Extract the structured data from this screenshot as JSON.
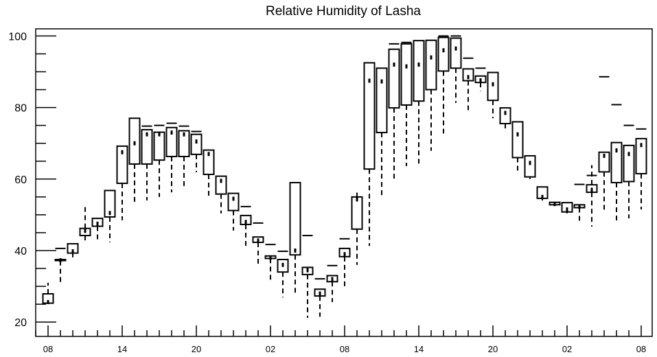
{
  "chart_data": {
    "type": "box",
    "title": "Relative Humidity of Lasha",
    "x": [
      8,
      9,
      10,
      11,
      12,
      13,
      14,
      15,
      16,
      17,
      18,
      19,
      20,
      21,
      22,
      23,
      0,
      1,
      2,
      3,
      4,
      5,
      6,
      7,
      8,
      9,
      10,
      11,
      12,
      13,
      14,
      15,
      16,
      17,
      18,
      19,
      20,
      21,
      22,
      23,
      0,
      1,
      2,
      3,
      4,
      5,
      6,
      7,
      8
    ],
    "x_tick_labels": [
      "08",
      "14",
      "20",
      "02",
      "08",
      "14",
      "20",
      "02",
      "08"
    ],
    "y_ticks": [
      20,
      40,
      60,
      80,
      100
    ],
    "ylim": [
      16,
      102
    ],
    "grid": false,
    "colors": {
      "stroke": "#000000",
      "background": "#ffffff"
    },
    "whisker_low": [
      25.3,
      31.2,
      38.1,
      42.1,
      42.9,
      42.3,
      48.5,
      52.7,
      54.0,
      55.0,
      56.3,
      57.7,
      61.9,
      55.0,
      50.4,
      45.6,
      40.6,
      36.3,
      31.3,
      26.9,
      27.5,
      21.2,
      21.5,
      25.6,
      29.4,
      36.0,
      41.3,
      55.2,
      59.4,
      63.6,
      64.0,
      67.9,
      72.5,
      81.3,
      79.0,
      84.6,
      77.0,
      73.6,
      62.0,
      60.0,
      54.0,
      52.5,
      50.4,
      48.3,
      46.7,
      51.2,
      47.5,
      49.0,
      51.5
    ],
    "q1": [
      25.3,
      37.2,
      39.3,
      44.2,
      46.8,
      49.4,
      58.8,
      64.2,
      64.2,
      65.3,
      66.3,
      66.3,
      66.9,
      61.3,
      55.8,
      51.2,
      47.3,
      42.3,
      37.8,
      34.0,
      38.8,
      33.3,
      27.3,
      31.3,
      38.3,
      46.0,
      62.8,
      73.0,
      79.9,
      80.7,
      81.8,
      85.0,
      90.2,
      91.0,
      87.5,
      87.0,
      82.0,
      75.5,
      66.0,
      60.6,
      54.6,
      52.8,
      50.8,
      52.0,
      56.3,
      62.0,
      59.0,
      59.3,
      61.5
    ],
    "median": [
      25.6,
      37.3,
      39.8,
      45.5,
      47.5,
      50.5,
      67.5,
      70.0,
      72.5,
      72.5,
      73.0,
      72.5,
      70.5,
      67.0,
      59.5,
      54.5,
      48.0,
      42.8,
      38.0,
      36.0,
      40.0,
      34.5,
      28.0,
      32.0,
      39.0,
      54.3,
      87.5,
      87.3,
      92.0,
      91.5,
      92.0,
      94.0,
      96.0,
      96.5,
      88.5,
      87.6,
      86.5,
      78.5,
      72.5,
      64.5,
      55.0,
      53.0,
      51.5,
      52.3,
      57.0,
      66.5,
      68.0,
      67.0,
      69.5
    ],
    "q3": [
      27.9,
      37.5,
      41.9,
      46.2,
      49.0,
      56.8,
      69.2,
      77.0,
      73.8,
      73.1,
      74.4,
      73.5,
      72.5,
      68.1,
      60.8,
      56.0,
      49.8,
      43.8,
      38.5,
      37.5,
      59.0,
      35.3,
      29.2,
      33.0,
      40.6,
      55.0,
      92.5,
      91.0,
      96.3,
      97.8,
      98.7,
      98.8,
      99.6,
      99.4,
      90.8,
      88.8,
      89.8,
      79.9,
      76.0,
      66.5,
      57.8,
      53.5,
      53.4,
      52.8,
      58.4,
      67.5,
      70.2,
      69.4,
      71.3
    ],
    "whisker_high": [
      31.0,
      null,
      null,
      52.7,
      null,
      null,
      null,
      null,
      null,
      null,
      null,
      null,
      null,
      null,
      null,
      null,
      null,
      null,
      null,
      null,
      null,
      null,
      null,
      null,
      null,
      56.2,
      null,
      null,
      null,
      null,
      null,
      null,
      null,
      null,
      null,
      null,
      null,
      null,
      null,
      null,
      null,
      null,
      null,
      null,
      63.9,
      null,
      null,
      null,
      null
    ],
    "max_marker": [
      null,
      40.6,
      null,
      null,
      null,
      null,
      null,
      null,
      74.8,
      75.0,
      75.6,
      74.8,
      73.3,
      null,
      null,
      null,
      52.3,
      47.7,
      41.7,
      39.8,
      null,
      44.2,
      32.1,
      35.8,
      43.3,
      null,
      null,
      null,
      97.8,
      98.2,
      null,
      null,
      100.0,
      100.0,
      93.8,
      91.0,
      null,
      null,
      null,
      null,
      null,
      null,
      null,
      58.5,
      61.0,
      88.6,
      80.8,
      75.0,
      74.0
    ]
  }
}
